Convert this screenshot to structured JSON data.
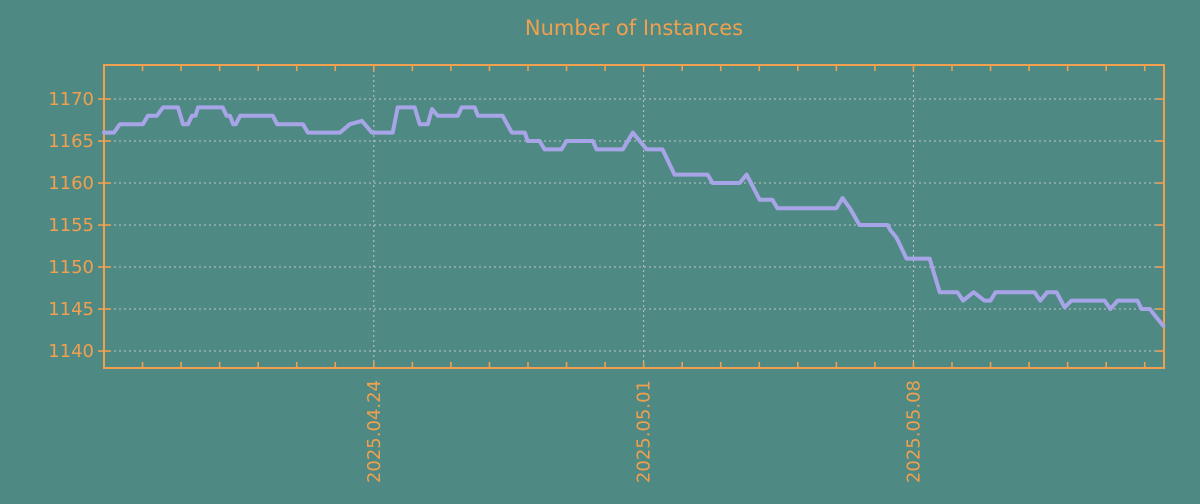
{
  "colors": {
    "background": "#4f8983",
    "axis": "#f0a04e",
    "text": "#f0a04e",
    "grid": "#cfd4d2",
    "line": "#a7a5e7"
  },
  "chart_data": {
    "type": "line",
    "title": "Number of Instances",
    "xlabel": "",
    "ylabel": "",
    "x_start_date": "2025.04.17",
    "x_domain_days": [
      0,
      27.5
    ],
    "x_minor_tick_every_days": 1,
    "x_tick_labels": [
      {
        "label": "2025.04.24",
        "day": 7
      },
      {
        "label": "2025.05.01",
        "day": 14
      },
      {
        "label": "2025.05.08",
        "day": 21
      }
    ],
    "ylim": [
      1137.98,
      1174.05
    ],
    "yticks": [
      1140,
      1145,
      1150,
      1155,
      1160,
      1165,
      1170
    ],
    "grid": true,
    "legend": "none",
    "series_name": "Number of Instances",
    "points": [
      [
        0,
        1166
      ],
      [
        0.26,
        1166
      ],
      [
        0.41,
        1167
      ],
      [
        1.01,
        1167
      ],
      [
        1.14,
        1168
      ],
      [
        1.37,
        1168
      ],
      [
        1.53,
        1169
      ],
      [
        1.92,
        1169
      ],
      [
        2.05,
        1167
      ],
      [
        2.18,
        1167
      ],
      [
        2.28,
        1168
      ],
      [
        2.37,
        1168
      ],
      [
        2.44,
        1169
      ],
      [
        3.08,
        1169
      ],
      [
        3.18,
        1168
      ],
      [
        3.27,
        1168
      ],
      [
        3.35,
        1167
      ],
      [
        3.42,
        1167
      ],
      [
        3.53,
        1168
      ],
      [
        4.38,
        1168
      ],
      [
        4.49,
        1167
      ],
      [
        5.16,
        1167
      ],
      [
        5.29,
        1166
      ],
      [
        6.12,
        1166
      ],
      [
        6.38,
        1167
      ],
      [
        6.69,
        1167.4
      ],
      [
        6.95,
        1166
      ],
      [
        7.49,
        1166
      ],
      [
        7.62,
        1169
      ],
      [
        8.06,
        1169
      ],
      [
        8.19,
        1167
      ],
      [
        8.4,
        1167
      ],
      [
        8.51,
        1168.8
      ],
      [
        8.66,
        1168
      ],
      [
        9.18,
        1168
      ],
      [
        9.28,
        1169
      ],
      [
        9.62,
        1169
      ],
      [
        9.7,
        1168
      ],
      [
        10.34,
        1168
      ],
      [
        10.58,
        1166
      ],
      [
        10.92,
        1166
      ],
      [
        10.99,
        1165
      ],
      [
        11.3,
        1165
      ],
      [
        11.43,
        1164
      ],
      [
        11.87,
        1164
      ],
      [
        12,
        1165
      ],
      [
        12.68,
        1165
      ],
      [
        12.78,
        1164
      ],
      [
        13.46,
        1164
      ],
      [
        13.72,
        1166
      ],
      [
        14.08,
        1164
      ],
      [
        14.49,
        1164
      ],
      [
        14.8,
        1161
      ],
      [
        15.66,
        1161
      ],
      [
        15.79,
        1160
      ],
      [
        16.49,
        1160
      ],
      [
        16.67,
        1161
      ],
      [
        17.01,
        1158
      ],
      [
        17.34,
        1158
      ],
      [
        17.47,
        1157
      ],
      [
        19,
        1157
      ],
      [
        19.16,
        1158.2
      ],
      [
        19.35,
        1157
      ],
      [
        19.6,
        1155
      ],
      [
        20.33,
        1155
      ],
      [
        20.4,
        1154.4
      ],
      [
        20.56,
        1153.5
      ],
      [
        20.82,
        1151
      ],
      [
        21.42,
        1151
      ],
      [
        21.68,
        1147
      ],
      [
        22.14,
        1147
      ],
      [
        22.29,
        1146
      ],
      [
        22.56,
        1147
      ],
      [
        22.84,
        1146
      ],
      [
        23.0,
        1146
      ],
      [
        23.13,
        1147
      ],
      [
        24.14,
        1147
      ],
      [
        24.29,
        1146
      ],
      [
        24.47,
        1147
      ],
      [
        24.71,
        1147
      ],
      [
        24.92,
        1145.2
      ],
      [
        25.1,
        1146
      ],
      [
        25.96,
        1146
      ],
      [
        26.11,
        1145
      ],
      [
        26.3,
        1146
      ],
      [
        26.81,
        1146
      ],
      [
        26.92,
        1145
      ],
      [
        27.13,
        1145
      ],
      [
        27.48,
        1143
      ]
    ]
  }
}
